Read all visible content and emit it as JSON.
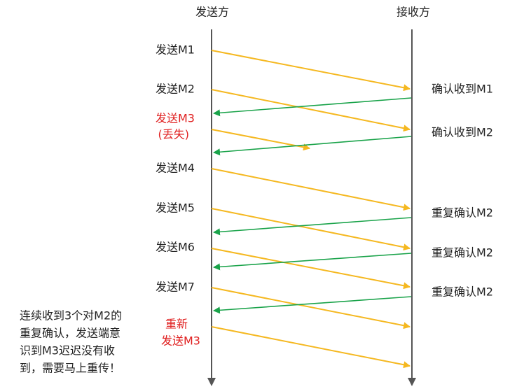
{
  "headers": {
    "sender": "发送方",
    "receiver": "接收方"
  },
  "sender_labels": [
    "发送M1",
    "发送M2",
    "发送M3",
    "(丢失)",
    "发送M4",
    "发送M5",
    "发送M6",
    "发送M7",
    "重新",
    "发送M3"
  ],
  "receiver_labels": [
    "确认收到M1",
    "确认收到M2",
    "重复确认M2",
    "重复确认M2",
    "重复确认M2"
  ],
  "note": [
    "连续收到3个对M2的",
    "重复确认，发送端意",
    "识到M3迟迟没有收",
    "到，需要马上重传！"
  ]
}
